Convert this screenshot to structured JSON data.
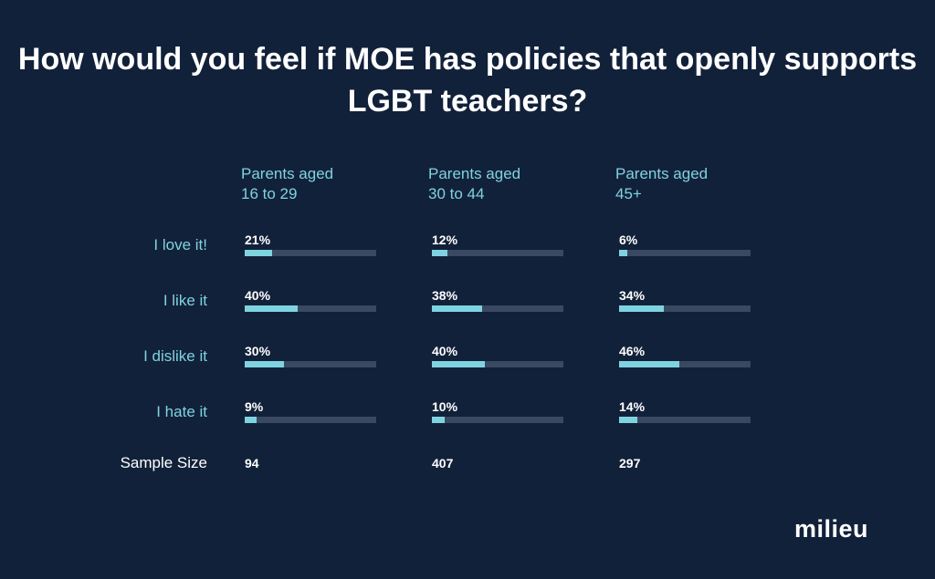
{
  "chart_data": {
    "type": "bar",
    "title": "How would you feel if MOE has policies that openly supports LGBT teachers?",
    "categories": [
      "I love it!",
      "I like it",
      "I dislike it",
      "I hate it"
    ],
    "series": [
      {
        "name": "Parents aged 16 to 29",
        "name_lines": [
          "Parents aged",
          "16 to 29"
        ],
        "values": [
          21,
          40,
          30,
          9
        ],
        "labels": [
          "21%",
          "40%",
          "30%",
          "9%"
        ],
        "sample_size": "94"
      },
      {
        "name": "Parents aged 30 to 44",
        "name_lines": [
          "Parents aged",
          "30 to 44"
        ],
        "values": [
          12,
          38,
          40,
          10
        ],
        "labels": [
          "12%",
          "38%",
          "40%",
          "10%"
        ],
        "sample_size": "407"
      },
      {
        "name": "Parents aged 45+",
        "name_lines": [
          "Parents aged",
          "45+"
        ],
        "values": [
          6,
          34,
          46,
          14
        ],
        "labels": [
          "6%",
          "34%",
          "46%",
          "14%"
        ],
        "sample_size": "297"
      }
    ],
    "xlim": [
      0,
      100
    ],
    "sample_size_label": "Sample Size",
    "grid": false,
    "colors": {
      "background": "#12213a",
      "bar": "#7fd3e0",
      "track": "#3a4962",
      "accent_text": "#7fd3e0",
      "text": "#ffffff"
    }
  },
  "brand": {
    "logo_text": "milieu"
  }
}
